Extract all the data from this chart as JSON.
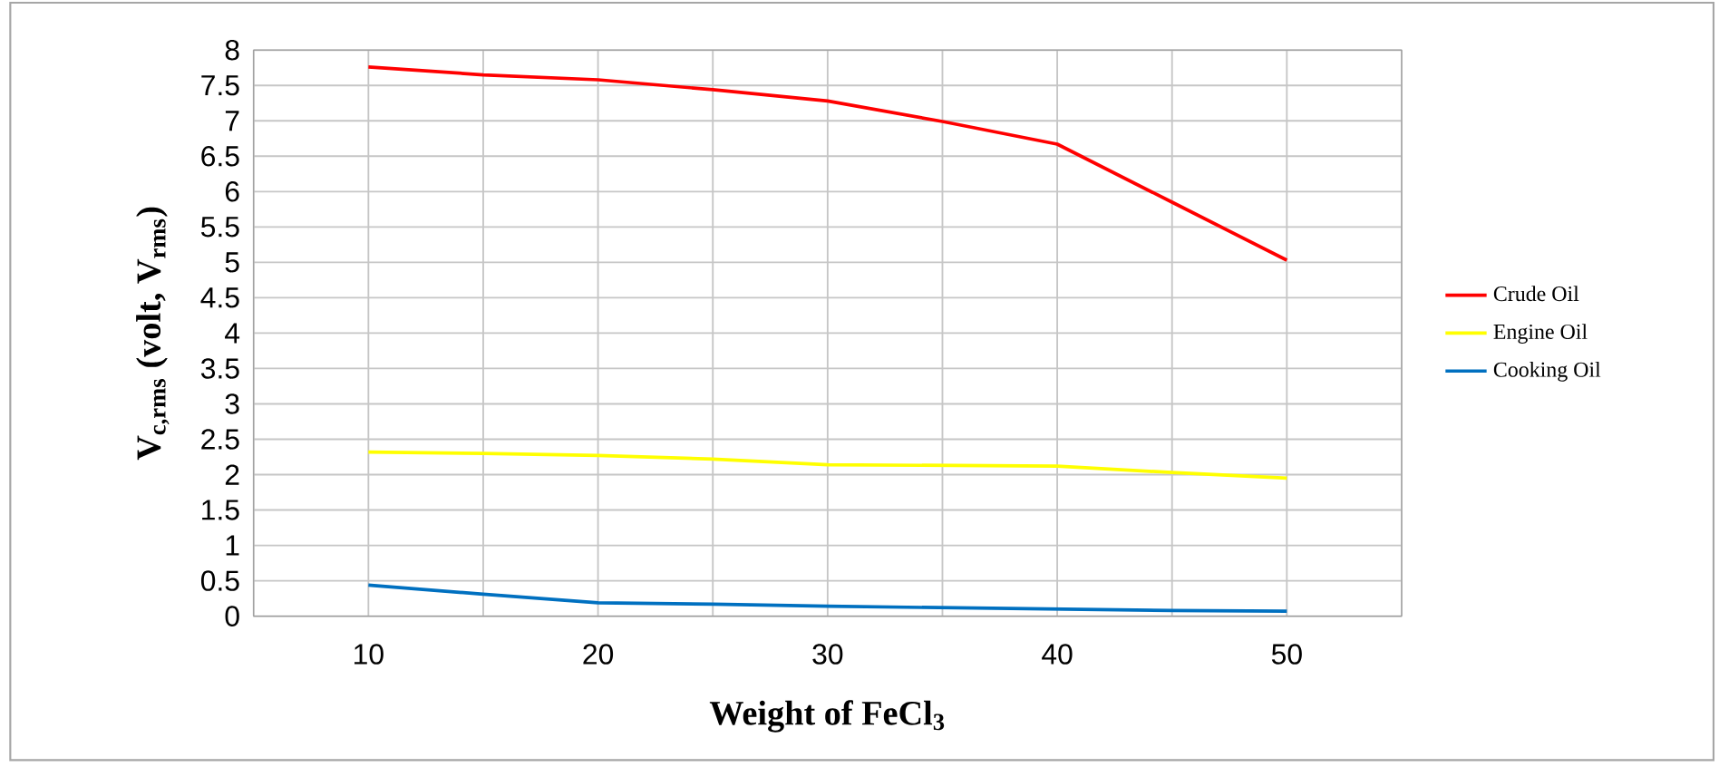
{
  "chart_data": {
    "type": "line",
    "xlabel": "Weight of FeCl$_{3}$",
    "ylabel": "V$_{c,rms}$ (volt, V$_{rms}$)",
    "x": [
      10,
      15,
      20,
      25,
      30,
      35,
      40,
      45,
      50
    ],
    "series": [
      {
        "name": "Crude Oil",
        "color": "#ff0000",
        "values": [
          7.76,
          7.65,
          7.58,
          7.44,
          7.28,
          6.99,
          6.67,
          5.85,
          5.03
        ]
      },
      {
        "name": "Engine Oil",
        "color": "#ffff00",
        "values": [
          2.32,
          2.3,
          2.27,
          2.22,
          2.14,
          2.13,
          2.12,
          2.03,
          1.95
        ]
      },
      {
        "name": "Cooking Oil",
        "color": "#0070c0",
        "values": [
          0.44,
          0.31,
          0.19,
          0.17,
          0.14,
          0.12,
          0.1,
          0.08,
          0.07
        ]
      }
    ],
    "xlim": [
      5,
      55
    ],
    "xticks": [
      {
        "value": 5,
        "label": null
      },
      10,
      {
        "value": 15,
        "label": null
      },
      20,
      {
        "value": 25,
        "label": null
      },
      30,
      {
        "value": 35,
        "label": null
      },
      40,
      {
        "value": 45,
        "label": null
      },
      50,
      {
        "value": 55,
        "label": null
      }
    ],
    "ylim": [
      0,
      8
    ],
    "yticks": [
      0,
      0.5,
      1,
      1.5,
      2,
      2.5,
      3,
      3.5,
      4,
      4.5,
      5,
      5.5,
      6,
      6.5,
      7,
      7.5,
      8
    ],
    "grid": true,
    "legend": "right",
    "marker": "none",
    "line_style": "solid"
  }
}
